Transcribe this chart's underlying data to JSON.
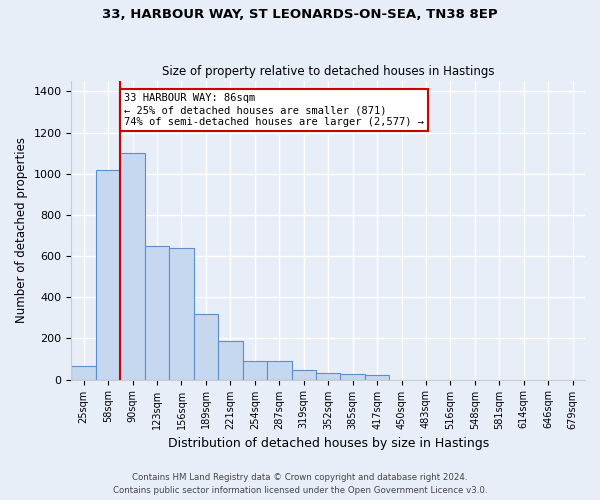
{
  "title1": "33, HARBOUR WAY, ST LEONARDS-ON-SEA, TN38 8EP",
  "title2": "Size of property relative to detached houses in Hastings",
  "xlabel": "Distribution of detached houses by size in Hastings",
  "ylabel": "Number of detached properties",
  "bar_color": "#c5d8f0",
  "bar_edge_color": "#5b8fc9",
  "categories": [
    "25sqm",
    "58sqm",
    "90sqm",
    "123sqm",
    "156sqm",
    "189sqm",
    "221sqm",
    "254sqm",
    "287sqm",
    "319sqm",
    "352sqm",
    "385sqm",
    "417sqm",
    "450sqm",
    "483sqm",
    "516sqm",
    "548sqm",
    "581sqm",
    "614sqm",
    "646sqm",
    "679sqm"
  ],
  "values": [
    65,
    1020,
    1100,
    650,
    640,
    320,
    188,
    90,
    90,
    47,
    30,
    25,
    20,
    0,
    0,
    0,
    0,
    0,
    0,
    0,
    0
  ],
  "property_label": "33 HARBOUR WAY: 86sqm",
  "annotation_line1": "← 25% of detached houses are smaller (871)",
  "annotation_line2": "74% of semi-detached houses are larger (2,577) →",
  "vline_color": "#cc0000",
  "ylim": [
    0,
    1450
  ],
  "yticks": [
    0,
    200,
    400,
    600,
    800,
    1000,
    1200,
    1400
  ],
  "footer1": "Contains HM Land Registry data © Crown copyright and database right 2024.",
  "footer2": "Contains public sector information licensed under the Open Government Licence v3.0.",
  "bg_color": "#e8eef8",
  "plot_bg_color": "#e8eef8"
}
